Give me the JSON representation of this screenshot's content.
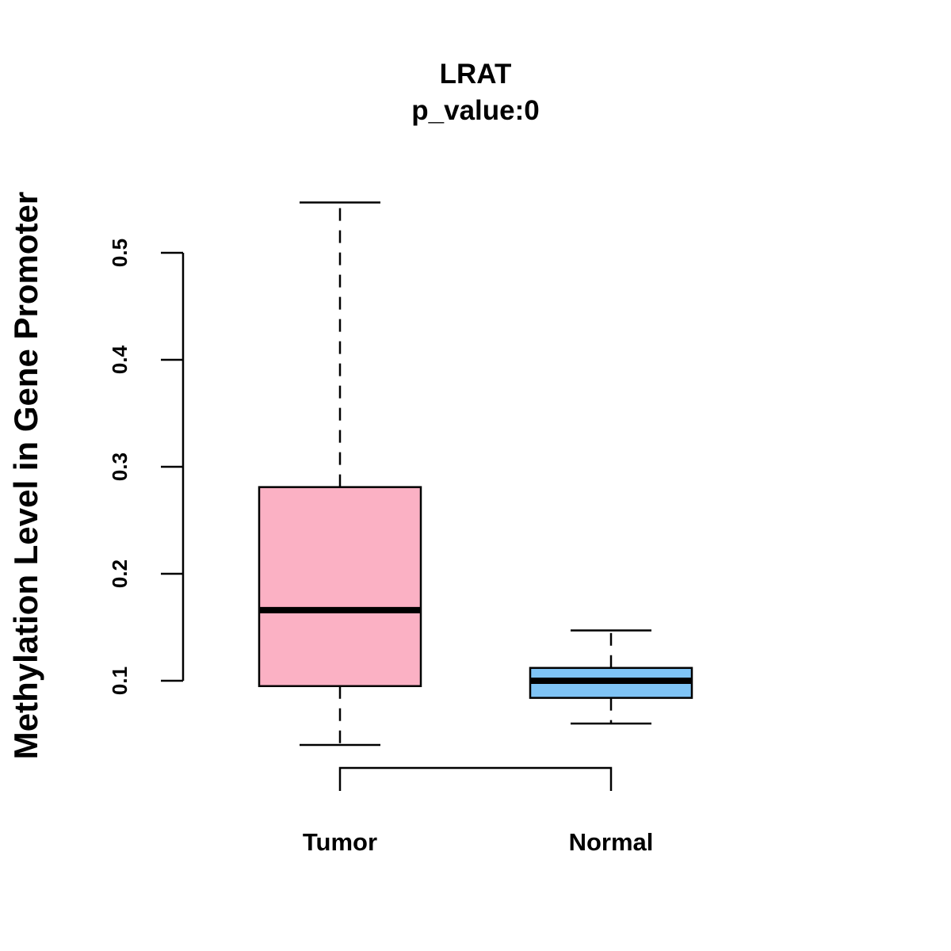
{
  "chart_data": {
    "type": "boxplot",
    "title": "LRAT",
    "subtitle": "p_value:0",
    "xlabel": "",
    "ylabel": "Methylation Level in Gene Promoter",
    "ylim": [
      0.1,
      0.5
    ],
    "y_ticks": [
      0.1,
      0.2,
      0.3,
      0.4,
      0.5
    ],
    "y_tick_labels": [
      "0.1",
      "0.2",
      "0.3",
      "0.4",
      "0.5"
    ],
    "grid": false,
    "categories": [
      "Tumor",
      "Normal"
    ],
    "series": [
      {
        "name": "Tumor",
        "whisker_low": 0.04,
        "q1": 0.095,
        "median": 0.166,
        "q3": 0.281,
        "whisker_high": 0.547,
        "color": "#FBB1C4"
      },
      {
        "name": "Normal",
        "whisker_low": 0.06,
        "q1": 0.084,
        "median": 0.1,
        "q3": 0.112,
        "whisker_high": 0.147,
        "color": "#7FC4F6"
      }
    ],
    "annotation": {
      "type": "comparison-bracket",
      "between": [
        "Tumor",
        "Normal"
      ]
    }
  }
}
